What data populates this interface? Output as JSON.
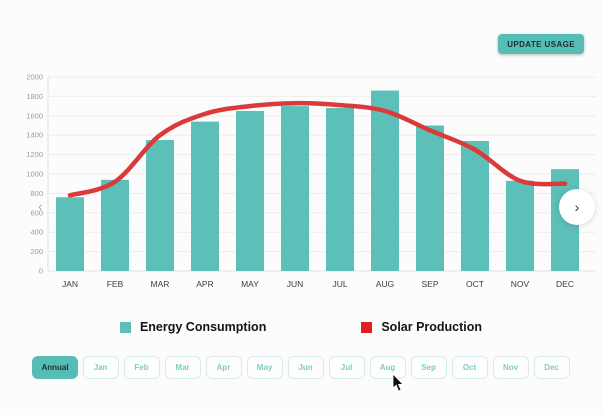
{
  "header": {
    "update_button_label": "UPDATE USAGE"
  },
  "icons": {
    "play": "▶",
    "prev": "‹",
    "next": "›"
  },
  "chart_data": {
    "type": "bar",
    "categories": [
      "JAN",
      "FEB",
      "MAR",
      "APR",
      "MAY",
      "JUN",
      "JUL",
      "AUG",
      "SEP",
      "OCT",
      "NOV",
      "DEC"
    ],
    "series": [
      {
        "name": "Energy Consumption",
        "type": "bar",
        "color": "#5cbfb8",
        "values": [
          760,
          940,
          1350,
          1540,
          1650,
          1700,
          1680,
          1860,
          1500,
          1340,
          930,
          1050
        ]
      },
      {
        "name": "Solar Production",
        "type": "line",
        "color": "#db3a3a",
        "legend_color": "#e02020",
        "values": [
          780,
          920,
          1400,
          1620,
          1700,
          1730,
          1710,
          1650,
          1450,
          1250,
          930,
          900
        ]
      }
    ],
    "title": "",
    "xlabel": "",
    "ylabel": "",
    "ylim": [
      0,
      2000
    ],
    "ytick_step": 200,
    "grid": true,
    "legend_position": "bottom"
  },
  "filters": {
    "items": [
      "Annual",
      "Jan",
      "Feb",
      "Mar",
      "Apr",
      "May",
      "Jun",
      "Jul",
      "Aug",
      "Sep",
      "Oct",
      "Nov",
      "Dec"
    ],
    "active": "Annual"
  }
}
